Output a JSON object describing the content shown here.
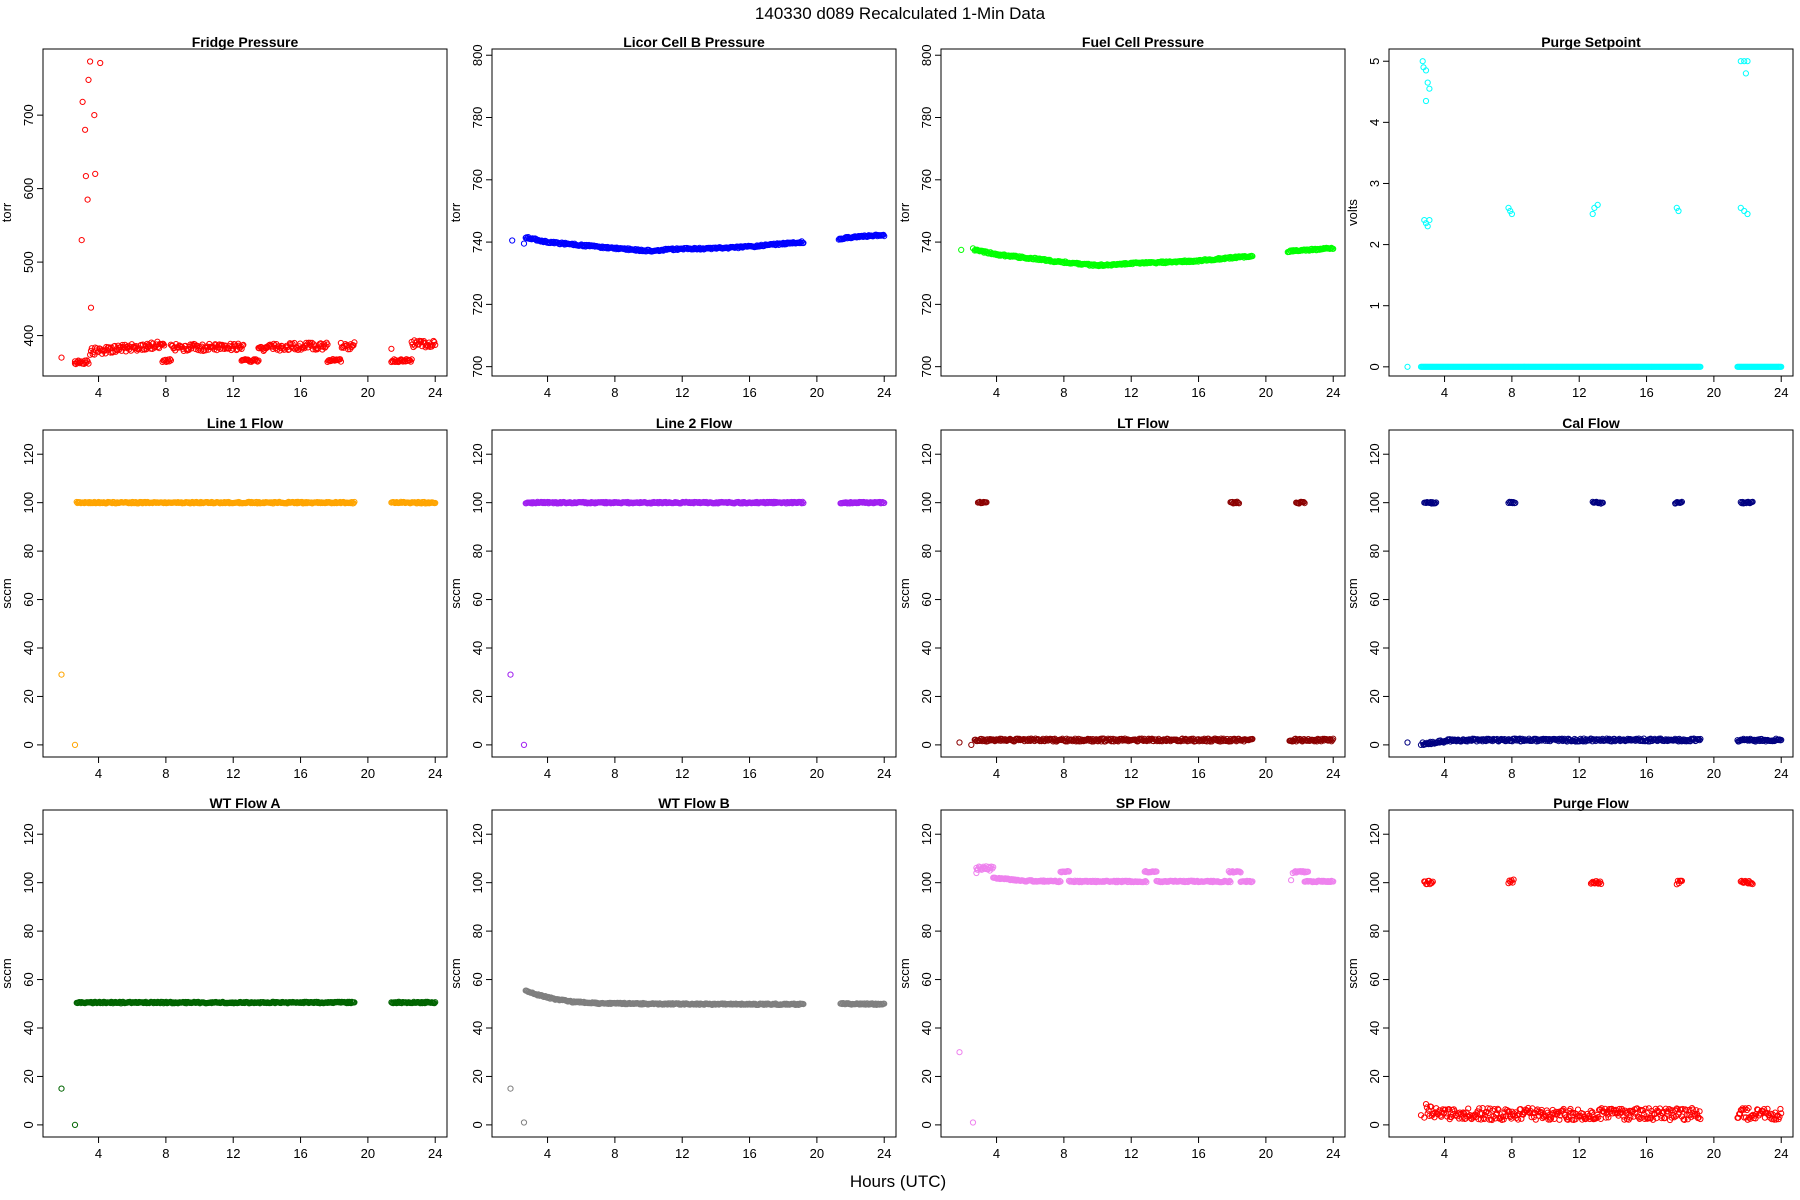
{
  "title": "140330    d089    Recalculated 1-Min Data",
  "xlabel": "Hours (UTC)",
  "x_ticks": [
    4,
    8,
    12,
    16,
    20,
    24
  ],
  "chart_data": [
    {
      "type": "scatter",
      "title": "Fridge Pressure",
      "ylabel": "torr",
      "color": "#ff0000",
      "xlim": [
        0.7,
        24.7
      ],
      "ylim": [
        345,
        790
      ],
      "y_ticks": [
        400,
        500,
        600,
        700
      ],
      "points": [
        [
          1.8,
          370
        ],
        [
          2.6,
          362
        ],
        [
          2.8,
          366
        ],
        [
          3.0,
          530
        ],
        [
          3.05,
          718
        ],
        [
          3.2,
          680
        ],
        [
          3.25,
          617
        ],
        [
          3.35,
          585
        ],
        [
          3.4,
          748
        ],
        [
          3.5,
          773
        ],
        [
          3.55,
          438
        ],
        [
          3.75,
          700
        ],
        [
          3.8,
          620
        ],
        [
          4.1,
          771
        ],
        [
          21.4,
          382
        ]
      ],
      "segments": [
        {
          "x": [
            2.6,
            3.4
          ],
          "y": [
            364,
            364
          ],
          "jitter": 3
        },
        {
          "x": [
            3.5,
            7.9
          ],
          "y": [
            378,
            388
          ],
          "jitter": 5
        },
        {
          "x": [
            7.8,
            8.3
          ],
          "y": [
            366,
            366
          ],
          "jitter": 2
        },
        {
          "x": [
            8.3,
            12.6
          ],
          "y": [
            384,
            384
          ],
          "jitter": 5
        },
        {
          "x": [
            12.5,
            13.5
          ],
          "y": [
            366,
            366
          ],
          "jitter": 2
        },
        {
          "x": [
            13.5,
            17.6
          ],
          "y": [
            384,
            386
          ],
          "jitter": 5
        },
        {
          "x": [
            17.6,
            18.4
          ],
          "y": [
            366,
            366
          ],
          "jitter": 2
        },
        {
          "x": [
            18.4,
            19.2
          ],
          "y": [
            386,
            386
          ],
          "jitter": 5
        },
        {
          "x": [
            21.4,
            22.6
          ],
          "y": [
            366,
            366
          ],
          "jitter": 2
        },
        {
          "x": [
            22.6,
            24.0
          ],
          "y": [
            389,
            389
          ],
          "jitter": 5
        }
      ]
    },
    {
      "type": "scatter",
      "title": "Licor Cell B Pressure",
      "ylabel": "torr",
      "color": "#0000ff",
      "xlim": [
        0.7,
        24.7
      ],
      "ylim": [
        697,
        802
      ],
      "y_ticks": [
        700,
        720,
        740,
        760,
        780,
        800
      ],
      "points": [
        [
          1.9,
          740.5
        ],
        [
          2.6,
          739.5
        ]
      ],
      "segments": [
        {
          "x": [
            2.7,
            4.0,
            6.0,
            8.0,
            10.0,
            12.0,
            14.0,
            16.0,
            18.0,
            19.2
          ],
          "y": [
            741.5,
            740.0,
            739.0,
            738.0,
            737.2,
            737.8,
            738.0,
            738.5,
            739.5,
            740.0
          ],
          "jitter": 0.3
        },
        {
          "x": [
            21.3,
            22.5,
            24.0
          ],
          "y": [
            741.0,
            741.8,
            742.2
          ],
          "jitter": 0.3
        }
      ]
    },
    {
      "type": "scatter",
      "title": "Fuel Cell Pressure",
      "ylabel": "torr",
      "color": "#00ff00",
      "xlim": [
        0.7,
        24.7
      ],
      "ylim": [
        697,
        802
      ],
      "y_ticks": [
        700,
        720,
        740,
        760,
        780,
        800
      ],
      "points": [
        [
          1.9,
          737.5
        ],
        [
          2.6,
          738.0
        ]
      ],
      "segments": [
        {
          "x": [
            2.7,
            4.0,
            6.0,
            8.0,
            10.0,
            12.0,
            14.0,
            16.0,
            18.0,
            19.2
          ],
          "y": [
            737.5,
            736.0,
            734.8,
            733.5,
            732.5,
            733.2,
            733.5,
            734.0,
            735.0,
            735.5
          ],
          "jitter": 0.3
        },
        {
          "x": [
            21.3,
            22.5,
            24.0
          ],
          "y": [
            737.0,
            737.5,
            738.0
          ],
          "jitter": 0.3
        }
      ]
    },
    {
      "type": "scatter",
      "title": "Purge Setpoint",
      "ylabel": "volts",
      "color": "#00ffff",
      "xlim": [
        0.7,
        24.7
      ],
      "ylim": [
        -0.15,
        5.2
      ],
      "y_ticks": [
        0,
        1,
        2,
        3,
        4,
        5
      ],
      "points": [
        [
          1.8,
          0
        ],
        [
          2.7,
          5.0
        ],
        [
          2.75,
          4.9
        ],
        [
          2.9,
          4.85
        ],
        [
          3.0,
          4.65
        ],
        [
          3.1,
          4.55
        ],
        [
          2.9,
          4.35
        ],
        [
          2.8,
          2.4
        ],
        [
          2.9,
          2.35
        ],
        [
          3.0,
          2.3
        ],
        [
          3.1,
          2.4
        ],
        [
          7.8,
          2.6
        ],
        [
          7.9,
          2.55
        ],
        [
          8.0,
          2.5
        ],
        [
          12.8,
          2.5
        ],
        [
          12.9,
          2.6
        ],
        [
          13.1,
          2.65
        ],
        [
          17.8,
          2.6
        ],
        [
          17.9,
          2.55
        ],
        [
          21.6,
          5.0
        ],
        [
          21.8,
          5.0
        ],
        [
          22.0,
          5.0
        ],
        [
          21.9,
          4.8
        ],
        [
          21.6,
          2.6
        ],
        [
          21.8,
          2.55
        ],
        [
          22.0,
          2.5
        ]
      ],
      "segments": [
        {
          "x": [
            2.6,
            19.2
          ],
          "y": [
            0,
            0
          ],
          "jitter": 0
        },
        {
          "x": [
            21.4,
            24.0
          ],
          "y": [
            0,
            0
          ],
          "jitter": 0
        }
      ]
    },
    {
      "type": "scatter",
      "title": "Line 1 Flow",
      "ylabel": "sccm",
      "color": "#ffa500",
      "xlim": [
        0.7,
        24.7
      ],
      "ylim": [
        -5,
        130
      ],
      "y_ticks": [
        0,
        20,
        40,
        60,
        80,
        100,
        120
      ],
      "points": [
        [
          1.8,
          29
        ],
        [
          2.6,
          0
        ]
      ],
      "segments": [
        {
          "x": [
            2.7,
            19.2
          ],
          "y": [
            100,
            100
          ],
          "jitter": 0.3
        },
        {
          "x": [
            21.4,
            24.0
          ],
          "y": [
            100,
            100
          ],
          "jitter": 0.3
        }
      ]
    },
    {
      "type": "scatter",
      "title": "Line 2 Flow",
      "ylabel": "sccm",
      "color": "#a020f0",
      "xlim": [
        0.7,
        24.7
      ],
      "ylim": [
        -5,
        130
      ],
      "y_ticks": [
        0,
        20,
        40,
        60,
        80,
        100,
        120
      ],
      "points": [
        [
          1.8,
          29
        ],
        [
          2.6,
          0
        ]
      ],
      "segments": [
        {
          "x": [
            2.7,
            19.2
          ],
          "y": [
            100,
            100
          ],
          "jitter": 0.3
        },
        {
          "x": [
            21.4,
            24.0
          ],
          "y": [
            100,
            100
          ],
          "jitter": 0.3
        }
      ]
    },
    {
      "type": "scatter",
      "title": "LT Flow",
      "ylabel": "sccm",
      "color": "#8b0000",
      "xlim": [
        0.7,
        24.7
      ],
      "ylim": [
        -5,
        130
      ],
      "y_ticks": [
        0,
        20,
        40,
        60,
        80,
        100,
        120
      ],
      "points": [
        [
          1.8,
          1
        ],
        [
          2.5,
          0
        ]
      ],
      "segments": [
        {
          "x": [
            2.7,
            19.2
          ],
          "y": [
            2,
            2
          ],
          "jitter": 0.6
        },
        {
          "x": [
            21.4,
            24.0
          ],
          "y": [
            2,
            2
          ],
          "jitter": 0.6
        },
        {
          "x": [
            2.9,
            3.4
          ],
          "y": [
            100,
            100
          ],
          "jitter": 0.4
        },
        {
          "x": [
            17.9,
            18.4
          ],
          "y": [
            100,
            100
          ],
          "jitter": 0.4
        },
        {
          "x": [
            21.8,
            22.3
          ],
          "y": [
            100,
            100
          ],
          "jitter": 0.4
        }
      ]
    },
    {
      "type": "scatter",
      "title": "Cal Flow",
      "ylabel": "sccm",
      "color": "#000080",
      "xlim": [
        0.7,
        24.7
      ],
      "ylim": [
        -5,
        130
      ],
      "y_ticks": [
        0,
        20,
        40,
        60,
        80,
        100,
        120
      ],
      "points": [
        [
          1.8,
          1
        ],
        [
          2.6,
          0
        ]
      ],
      "segments": [
        {
          "x": [
            2.7,
            3.5,
            4.5,
            19.2
          ],
          "y": [
            0.5,
            1,
            2,
            2
          ],
          "jitter": 0.6
        },
        {
          "x": [
            21.4,
            24.0
          ],
          "y": [
            2,
            2
          ],
          "jitter": 0.6
        },
        {
          "x": [
            2.8,
            3.5
          ],
          "y": [
            100,
            100
          ],
          "jitter": 0.4
        },
        {
          "x": [
            7.8,
            8.2
          ],
          "y": [
            100,
            100
          ],
          "jitter": 0.4
        },
        {
          "x": [
            12.8,
            13.4
          ],
          "y": [
            100,
            100
          ],
          "jitter": 0.4
        },
        {
          "x": [
            17.7,
            18.1
          ],
          "y": [
            100,
            100
          ],
          "jitter": 0.4
        },
        {
          "x": [
            21.6,
            22.3
          ],
          "y": [
            100,
            100
          ],
          "jitter": 0.4
        }
      ]
    },
    {
      "type": "scatter",
      "title": "WT Flow A",
      "ylabel": "sccm",
      "color": "#006400",
      "xlim": [
        0.7,
        24.7
      ],
      "ylim": [
        -5,
        130
      ],
      "y_ticks": [
        0,
        20,
        40,
        60,
        80,
        100,
        120
      ],
      "points": [
        [
          1.8,
          15
        ],
        [
          2.6,
          0
        ]
      ],
      "segments": [
        {
          "x": [
            2.7,
            19.2
          ],
          "y": [
            50.5,
            50.5
          ],
          "jitter": 0.3
        },
        {
          "x": [
            21.4,
            24.0
          ],
          "y": [
            50.5,
            50.5
          ],
          "jitter": 0.3
        }
      ]
    },
    {
      "type": "scatter",
      "title": "WT Flow B",
      "ylabel": "sccm",
      "color": "#7f7f7f",
      "xlim": [
        0.7,
        24.7
      ],
      "ylim": [
        -5,
        130
      ],
      "y_ticks": [
        0,
        20,
        40,
        60,
        80,
        100,
        120
      ],
      "points": [
        [
          1.8,
          15
        ],
        [
          2.6,
          1
        ]
      ],
      "segments": [
        {
          "x": [
            2.7,
            3.5,
            4.5,
            5.5,
            7,
            10,
            14,
            19.2
          ],
          "y": [
            55.5,
            53.5,
            51.8,
            50.8,
            50.2,
            50,
            49.8,
            49.8
          ],
          "jitter": 0.3
        },
        {
          "x": [
            21.4,
            24.0
          ],
          "y": [
            50,
            49.8
          ],
          "jitter": 0.3
        }
      ]
    },
    {
      "type": "scatter",
      "title": "SP Flow",
      "ylabel": "sccm",
      "color": "#ee82ee",
      "xlim": [
        0.7,
        24.7
      ],
      "ylim": [
        -5,
        130
      ],
      "y_ticks": [
        0,
        20,
        40,
        60,
        80,
        100,
        120
      ],
      "points": [
        [
          1.8,
          30
        ],
        [
          2.6,
          1
        ],
        [
          2.8,
          104
        ],
        [
          3.3,
          106
        ],
        [
          3.6,
          105
        ],
        [
          21.5,
          101
        ],
        [
          21.6,
          104
        ]
      ],
      "segments": [
        {
          "x": [
            2.8,
            3.8
          ],
          "y": [
            106,
            106
          ],
          "jitter": 0.8
        },
        {
          "x": [
            3.8,
            4.5,
            5.5,
            7.8
          ],
          "y": [
            102,
            101.5,
            100.8,
            100.5
          ],
          "jitter": 0.3
        },
        {
          "x": [
            7.8,
            8.3
          ],
          "y": [
            104.5,
            104.5
          ],
          "jitter": 0.3
        },
        {
          "x": [
            8.3,
            12.9
          ],
          "y": [
            100.5,
            100.5
          ],
          "jitter": 0.3
        },
        {
          "x": [
            12.8,
            13.5
          ],
          "y": [
            104.5,
            104.5
          ],
          "jitter": 0.3
        },
        {
          "x": [
            13.5,
            17.9
          ],
          "y": [
            100.5,
            100.5
          ],
          "jitter": 0.3
        },
        {
          "x": [
            17.8,
            18.5
          ],
          "y": [
            104.5,
            104.5
          ],
          "jitter": 0.3
        },
        {
          "x": [
            18.5,
            19.2
          ],
          "y": [
            100.5,
            100.5
          ],
          "jitter": 0.3
        },
        {
          "x": [
            21.7,
            22.5
          ],
          "y": [
            104.5,
            104.5
          ],
          "jitter": 0.3
        },
        {
          "x": [
            22.3,
            24.0
          ],
          "y": [
            100.5,
            100.5
          ],
          "jitter": 0.3
        }
      ]
    },
    {
      "type": "scatter",
      "title": "Purge Flow",
      "ylabel": "sccm",
      "color": "#ff0000",
      "xlim": [
        0.7,
        24.7
      ],
      "ylim": [
        -5,
        130
      ],
      "y_ticks": [
        0,
        20,
        40,
        60,
        80,
        100,
        120
      ],
      "points": [
        [
          2.6,
          4
        ],
        [
          2.8,
          3
        ]
      ],
      "segments": [
        {
          "x": [
            2.9,
            3.2,
            4.0,
            19.2
          ],
          "y": [
            7,
            5,
            4.5,
            4.5
          ],
          "jitter": 2.5
        },
        {
          "x": [
            21.4,
            24.0
          ],
          "y": [
            4.5,
            4.5
          ],
          "jitter": 2.5
        },
        {
          "x": [
            2.8,
            3.3
          ],
          "y": [
            100,
            100
          ],
          "jitter": 0.8
        },
        {
          "x": [
            7.8,
            8.1
          ],
          "y": [
            100.5,
            100.5
          ],
          "jitter": 0.8
        },
        {
          "x": [
            12.7,
            13.3
          ],
          "y": [
            100,
            100
          ],
          "jitter": 0.8
        },
        {
          "x": [
            17.8,
            18.1
          ],
          "y": [
            100,
            100
          ],
          "jitter": 0.8
        },
        {
          "x": [
            21.6,
            22.3
          ],
          "y": [
            100,
            100
          ],
          "jitter": 0.8
        }
      ]
    }
  ]
}
